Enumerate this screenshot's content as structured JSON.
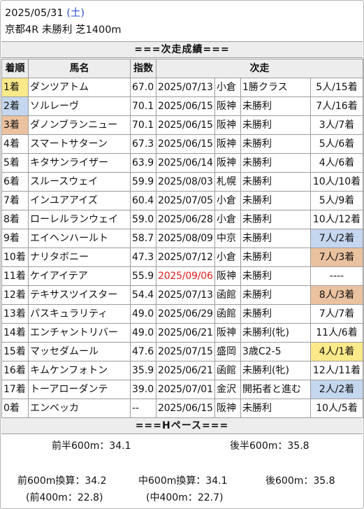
{
  "race": {
    "date": "2025/05/31",
    "day_of_week": "(土)",
    "title": "京都4R 未勝利 芝1400m"
  },
  "results_section": {
    "heading": "===次走成績===",
    "columns": [
      "着順",
      "馬名",
      "指数",
      "次走"
    ],
    "rows": [
      {
        "rank": "1着",
        "horse": "ダンツアトム",
        "index": "67.0",
        "next_date": "2025/07/13",
        "next_track": "小倉",
        "next_race": "1勝クラス",
        "next_result": "5人/15着"
      },
      {
        "rank": "2着",
        "horse": "ソルレーヴ",
        "index": "70.1",
        "next_date": "2025/06/15",
        "next_track": "阪神",
        "next_race": "未勝利",
        "next_result": "7人/16着"
      },
      {
        "rank": "3着",
        "horse": "ダノンブランニュー",
        "index": "70.1",
        "next_date": "2025/06/15",
        "next_track": "阪神",
        "next_race": "未勝利",
        "next_result": "3人/7着"
      },
      {
        "rank": "4着",
        "horse": "スマートサターン",
        "index": "67.3",
        "next_date": "2025/06/15",
        "next_track": "阪神",
        "next_race": "未勝利",
        "next_result": "5人/6着"
      },
      {
        "rank": "5着",
        "horse": "キタサンライザー",
        "index": "63.9",
        "next_date": "2025/06/14",
        "next_track": "阪神",
        "next_race": "未勝利",
        "next_result": "4人/6着"
      },
      {
        "rank": "6着",
        "horse": "スルースウェイ",
        "index": "59.9",
        "next_date": "2025/08/03",
        "next_track": "札幌",
        "next_race": "未勝利",
        "next_result": "10人/10着"
      },
      {
        "rank": "7着",
        "horse": "インユアアイズ",
        "index": "60.4",
        "next_date": "2025/07/05",
        "next_track": "小倉",
        "next_race": "未勝利",
        "next_result": "5人/9着"
      },
      {
        "rank": "8着",
        "horse": "ローレルランウェイ",
        "index": "59.0",
        "next_date": "2025/06/28",
        "next_track": "小倉",
        "next_race": "未勝利",
        "next_result": "10人/12着"
      },
      {
        "rank": "9着",
        "horse": "エイヘンハールト",
        "index": "58.7",
        "next_date": "2025/08/09",
        "next_track": "中京",
        "next_race": "未勝利",
        "next_result": "7人/2着"
      },
      {
        "rank": "10着",
        "horse": "ナリタボニー",
        "index": "47.3",
        "next_date": "2025/07/12",
        "next_track": "小倉",
        "next_race": "未勝利",
        "next_result": "7人/3着"
      },
      {
        "rank": "11着",
        "horse": "ケイアイテア",
        "index": "55.9",
        "next_date": "2025/09/06",
        "next_track": "阪神",
        "next_race": "未勝利",
        "next_result": "----"
      },
      {
        "rank": "12着",
        "horse": "テキサスツイスター",
        "index": "54.4",
        "next_date": "2025/07/13",
        "next_track": "函館",
        "next_race": "未勝利",
        "next_result": "8人/3着"
      },
      {
        "rank": "13着",
        "horse": "パスキュラリティ",
        "index": "49.0",
        "next_date": "2025/06/29",
        "next_track": "函館",
        "next_race": "未勝利",
        "next_result": "7人/7着"
      },
      {
        "rank": "14着",
        "horse": "エンチャントリバー",
        "index": "49.0",
        "next_date": "2025/06/21",
        "next_track": "阪神",
        "next_race": "未勝利(牝)",
        "next_result": "11人/6着"
      },
      {
        "rank": "15着",
        "horse": "マッセダムール",
        "index": "47.6",
        "next_date": "2025/07/15",
        "next_track": "盛岡",
        "next_race": "3歳C2-5",
        "next_result": "4人/1着"
      },
      {
        "rank": "16着",
        "horse": "キムケンフォトン",
        "index": "35.9",
        "next_date": "2025/06/21",
        "next_track": "函館",
        "next_race": "未勝利(牝)",
        "next_result": "12人/11着"
      },
      {
        "rank": "17着",
        "horse": "トーアローダンテ",
        "index": "39.0",
        "next_date": "2025/07/01",
        "next_track": "金沢",
        "next_race": "開拓者と進む",
        "next_result": "2人/2着"
      },
      {
        "rank": "0着",
        "horse": "エンベッカ",
        "index": "--",
        "next_date": "2025/06/15",
        "next_track": "阪神",
        "next_race": "未勝利",
        "next_result": "10人/5着"
      }
    ]
  },
  "pace_section": {
    "heading": "===Hペース===",
    "first_half": "前半600m：34.1",
    "second_half": "後半600m：35.8",
    "front_600": "前600m換算：34.2",
    "front_400": "(前400m：22.8)",
    "mid_600": "中600m換算：34.1",
    "mid_400": "(中400m：22.7)",
    "last_600": "後600m：35.8"
  },
  "colors": {
    "first_place": "#fce98a",
    "second_place": "#c5d6ef",
    "third_place": "#ebc29f",
    "future_date": "#e0201c",
    "day_of_week": "#2e4fc9"
  },
  "highlights": {
    "rank_cells": {
      "1着": "gold",
      "2着": "silver",
      "3着": "bronze"
    },
    "result_cells": [
      {
        "row": 8,
        "style": "silver"
      },
      {
        "row": 9,
        "style": "bronze"
      },
      {
        "row": 11,
        "style": "bronze"
      },
      {
        "row": 14,
        "style": "gold"
      },
      {
        "row": 16,
        "style": "silver"
      }
    ],
    "red_date_rows": [
      10
    ]
  }
}
